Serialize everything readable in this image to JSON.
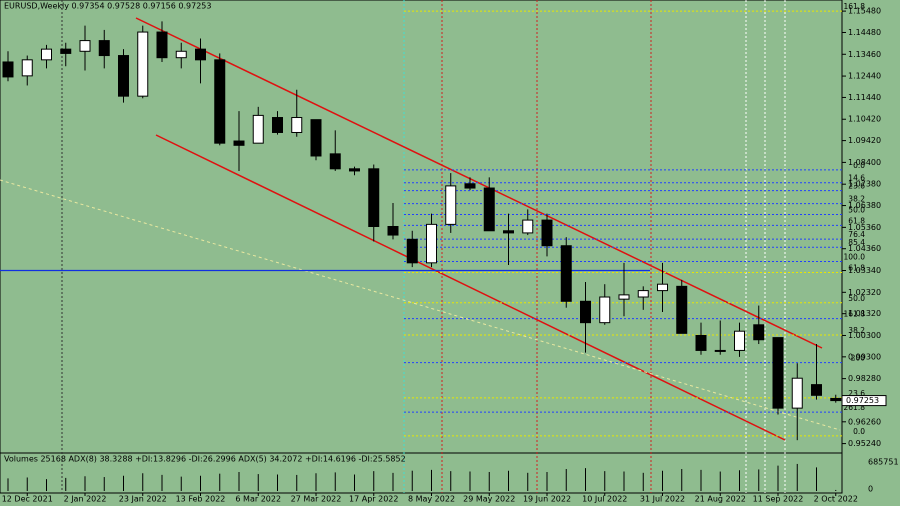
{
  "chart_data": {
    "type": "candlestick",
    "title": "EURUSD,Weekly  0.97354 0.97528 0.97156 0.97253",
    "categories": [
      null,
      "12 Dec 2021",
      null,
      null,
      "2 Jan 2022",
      null,
      null,
      "23 Jan 2022",
      null,
      null,
      "13 Feb 2022",
      null,
      null,
      "6 Mar 2022",
      null,
      null,
      "27 Mar 2022",
      null,
      null,
      "17 Apr 2022",
      null,
      null,
      "8 May 2022",
      null,
      null,
      "29 May 2022",
      null,
      null,
      "19 Jun 2022",
      null,
      null,
      "10 Jul 2022",
      null,
      null,
      "31 Jul 2022",
      null,
      null,
      "21 Aug 2022",
      null,
      null,
      "11 Sep 2022",
      null,
      null,
      "2 Oct 2022"
    ],
    "open": [
      1.131,
      1.1245,
      1.132,
      1.137,
      1.136,
      1.141,
      1.134,
      1.115,
      1.145,
      1.133,
      1.137,
      1.132,
      1.094,
      1.093,
      1.105,
      1.098,
      1.104,
      1.088,
      1.081,
      1.081,
      1.054,
      1.048,
      1.037,
      1.055,
      1.074,
      1.072,
      1.052,
      1.051,
      1.057,
      1.045,
      1.019,
      1.009,
      1.02,
      1.021,
      1.024,
      1.026,
      1.003,
      0.996,
      0.996,
      1.008,
      1.002,
      0.969,
      0.98,
      0.97354
    ],
    "high": [
      1.136,
      1.134,
      1.139,
      1.14,
      1.148,
      1.146,
      1.137,
      1.148,
      1.15,
      1.14,
      1.142,
      1.135,
      1.108,
      1.11,
      1.108,
      1.118,
      1.104,
      1.099,
      1.082,
      1.083,
      1.065,
      1.052,
      1.06,
      1.079,
      1.077,
      1.077,
      1.06,
      1.062,
      1.06,
      1.049,
      1.028,
      1.027,
      1.037,
      1.026,
      1.037,
      1.029,
      1.009,
      1.01,
      1.009,
      1.017,
      1.002,
      0.99,
      0.999,
      0.97528
    ],
    "low": [
      1.122,
      1.12,
      1.128,
      1.129,
      1.127,
      1.128,
      1.112,
      1.114,
      1.131,
      1.128,
      1.121,
      1.092,
      1.08,
      1.093,
      1.097,
      1.096,
      1.085,
      1.08,
      1.078,
      1.047,
      1.048,
      1.035,
      1.035,
      1.051,
      1.071,
      1.052,
      1.036,
      1.05,
      1.04,
      1.016,
      0.995,
      1.008,
      1.012,
      1.015,
      1.014,
      1.005,
      0.994,
      0.994,
      0.993,
      0.999,
      0.966,
      0.954,
      0.973,
      0.97156
    ],
    "close": [
      1.124,
      1.132,
      1.137,
      1.135,
      1.141,
      1.134,
      1.115,
      1.145,
      1.133,
      1.136,
      1.132,
      1.093,
      1.092,
      1.106,
      1.098,
      1.105,
      1.087,
      1.081,
      1.08,
      1.054,
      1.05,
      1.037,
      1.055,
      1.073,
      1.072,
      1.052,
      1.051,
      1.057,
      1.045,
      1.019,
      1.009,
      1.021,
      1.022,
      1.024,
      1.027,
      1.004,
      0.996,
      0.996,
      1.005,
      1.001,
      0.969,
      0.983,
      0.975,
      0.97253
    ],
    "close_label": "0.97253",
    "ylim": [
      0.948,
      1.16
    ],
    "yticks": [
      {
        "value": 1.1548,
        "label": "1.15480"
      },
      {
        "value": 1.1448,
        "label": "1.14480"
      },
      {
        "value": 1.1346,
        "label": "1.13460"
      },
      {
        "value": 1.1244,
        "label": "1.12440"
      },
      {
        "value": 1.1144,
        "label": "1.11440"
      },
      {
        "value": 1.1042,
        "label": "1.10420"
      },
      {
        "value": 1.0942,
        "label": "1.09420"
      },
      {
        "value": 1.084,
        "label": "1.08400"
      },
      {
        "value": 1.0738,
        "label": "1.07380"
      },
      {
        "value": 1.0638,
        "label": "1.06380"
      },
      {
        "value": 1.0536,
        "label": "1.05360"
      },
      {
        "value": 1.0436,
        "label": "1.04360"
      },
      {
        "value": 1.0334,
        "label": "1.03340"
      },
      {
        "value": 1.0232,
        "label": "1.02320"
      },
      {
        "value": 1.0132,
        "label": "1.01320"
      },
      {
        "value": 1.003,
        "label": "1.00300"
      },
      {
        "value": 0.993,
        "label": "0.99300"
      },
      {
        "value": 0.9828,
        "label": "0.98280"
      },
      {
        "value": 0.9626,
        "label": "0.96260"
      },
      {
        "value": 0.9524,
        "label": "0.95240"
      }
    ],
    "fib_levels": [
      {
        "label": "0.0",
        "value": 1.0805
      },
      {
        "label": "14.6",
        "value": 1.0745
      },
      {
        "label": "23.6",
        "value": 1.0708
      },
      {
        "label": "38.2",
        "value": 1.0647
      },
      {
        "label": "50.0",
        "value": 1.0596
      },
      {
        "label": "61.8",
        "value": 1.0545
      },
      {
        "label": "76.4",
        "value": 1.0481
      },
      {
        "label": "85.4",
        "value": 1.0443
      },
      {
        "label": "100.0",
        "value": 1.0376
      },
      {
        "label": "161.8",
        "value": 1.0109
      },
      {
        "label": "200",
        "value": 0.9903
      },
      {
        "label": "261.8",
        "value": 0.9671
      }
    ],
    "fib_color": "#2040ff",
    "fib2_levels": [
      {
        "label": "161.8",
        "value": 1.1548
      },
      {
        "label": "61.8",
        "value": 1.0325
      },
      {
        "label": "50.0",
        "value": 1.0183
      },
      {
        "label": "38.2",
        "value": 1.0032
      },
      {
        "label": "23.6",
        "value": 0.9738
      },
      {
        "label": "0.0",
        "value": 0.956
      }
    ],
    "fib2_color": "#e8e800",
    "hline": 1.0334,
    "indicator_text": "Volumes 25168  ADX(8) 38.3288 +DI:13.8296 -DI:26.2996  ADX(5) 34.2072 +DI:14.6196 -DI:25.5852",
    "volume": [
      300000,
      320000,
      280000,
      310000,
      350000,
      330000,
      360000,
      420000,
      380000,
      340000,
      360000,
      410000,
      450000,
      400000,
      390000,
      380000,
      420000,
      440000,
      390000,
      470000,
      430000,
      480000,
      500000,
      470000,
      460000,
      450000,
      480000,
      430000,
      450000,
      520000,
      540000,
      470000,
      460000,
      430000,
      480000,
      520000,
      500000,
      460000,
      490000,
      510000,
      600000,
      640000,
      560000,
      25168
    ],
    "volume_ylim": [
      0,
      685751
    ],
    "volume_ticks": [
      0,
      685751
    ]
  }
}
